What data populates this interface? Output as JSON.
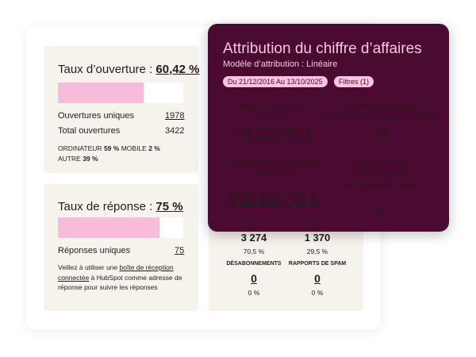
{
  "open_panel": {
    "title": "Taux d’ouverture :",
    "rate": "60,42 %",
    "rows": [
      {
        "label": "Ouvertures uniques",
        "value": "1978"
      },
      {
        "label": "Total ouvertures",
        "value": "3422"
      }
    ],
    "devices": [
      {
        "label": "ORDINATEUR",
        "value": "59 %"
      },
      {
        "label": "MOBILE",
        "value": "2 %"
      },
      {
        "label": "AUTRE",
        "value": "39 %"
      }
    ]
  },
  "reply_panel": {
    "title": "Taux de réponse :",
    "rate": "75 %",
    "rows": [
      {
        "label": "Réponses uniques",
        "value": "75"
      }
    ],
    "note": {
      "before": "Veillez à utiliser une",
      "link": "boîte de réception connectée",
      "after": "à HubSpot comme adresse de réponse pour suivre les réponses"
    }
  },
  "stats_panel": {
    "top": [
      {
        "value": "3 274",
        "percent": "70,5 %"
      },
      {
        "value": "1 370",
        "percent": "29,5 %"
      }
    ],
    "bottom": [
      {
        "label": "DÉSABONNEMENTS",
        "value": "0",
        "percent": "0 %"
      },
      {
        "label": "RAPPORTS DE SPAM",
        "value": "0",
        "percent": "0 %"
      }
    ]
  },
  "attribution": {
    "title": "Attribution du chiffre d’affaires",
    "subtitle": "Modèle d’attribution : Linéaire",
    "pills": [
      "Du 21/12/2016 Au 13/10/2025",
      "Filtres (1)"
    ],
    "metrics": [
      {
        "label_lines": [
          "CHIFFRE D’AFFAIRES",
          "ATTRIBUÉ"
        ],
        "value": "29 137,65 €"
      },
      {
        "label_lines": [
          "TRANSACTIONS AVEC",
          "CHIFFRE D’AFFAIRES ATTRIBUÉ"
        ],
        "value": "21"
      },
      {
        "label_lines": [
          "VALEUR TRANSACTIONS",
          "ASSOCIÉES"
        ],
        "value": "930 885,70 €"
      },
      {
        "label_lines": [
          "CONTACTS AVEC",
          "UN CHIFFRE",
          "D’AFFAIRES ATTRIBUÉ"
        ],
        "value": "4"
      }
    ]
  }
}
